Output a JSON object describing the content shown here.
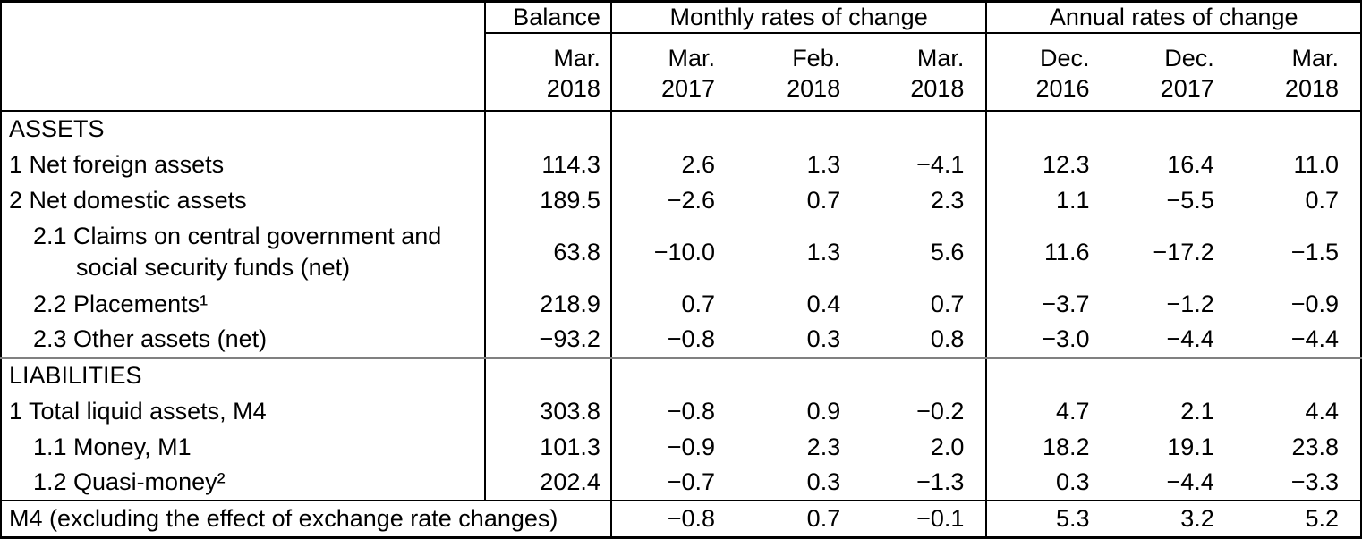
{
  "meta": {
    "accent_border_color": "#000000",
    "section_separator_color": "#808080",
    "background_color": "#ffffff"
  },
  "table": {
    "header": {
      "balance_label": "Balance",
      "monthly_label": "Monthly rates of change",
      "annual_label": "Annual rates of change",
      "balance_period": {
        "month": "Mar.",
        "year": "2018"
      },
      "monthly_periods": [
        {
          "month": "Mar.",
          "year": "2017"
        },
        {
          "month": "Feb.",
          "year": "2018"
        },
        {
          "month": "Mar.",
          "year": "2018"
        }
      ],
      "annual_periods": [
        {
          "month": "Dec.",
          "year": "2016"
        },
        {
          "month": "Dec.",
          "year": "2017"
        },
        {
          "month": "Mar.",
          "year": "2018"
        }
      ]
    },
    "rows": [
      {
        "type": "section",
        "label": "ASSETS"
      },
      {
        "type": "data",
        "indent": 0,
        "label": "1 Net foreign assets",
        "balance": "114.3",
        "monthly": [
          "2.6",
          "1.3",
          "−4.1"
        ],
        "annual": [
          "12.3",
          "16.4",
          "11.0"
        ]
      },
      {
        "type": "data",
        "indent": 0,
        "label": "2 Net domestic assets",
        "balance": "189.5",
        "monthly": [
          "−2.6",
          "0.7",
          "2.3"
        ],
        "annual": [
          "1.1",
          "−5.5",
          "0.7"
        ]
      },
      {
        "type": "data",
        "indent": 1,
        "label_lines": [
          "2.1 Claims on central government and",
          "social security funds (net)"
        ],
        "balance": "63.8",
        "monthly": [
          "−10.0",
          "1.3",
          "5.6"
        ],
        "annual": [
          "11.6",
          "−17.2",
          "−1.5"
        ]
      },
      {
        "type": "data",
        "indent": 1,
        "label": "2.2 Placements¹",
        "balance": "218.9",
        "monthly": [
          "0.7",
          "0.4",
          "0.7"
        ],
        "annual": [
          "−3.7",
          "−1.2",
          "−0.9"
        ]
      },
      {
        "type": "data",
        "indent": 1,
        "label": "2.3 Other assets (net)",
        "balance": "−93.2",
        "monthly": [
          "−0.8",
          "0.3",
          "0.8"
        ],
        "annual": [
          "−3.0",
          "−4.4",
          "−4.4"
        ]
      },
      {
        "type": "section",
        "label": "LIABILITIES",
        "separator": true
      },
      {
        "type": "data",
        "indent": 0,
        "label": "1 Total liquid assets, M4",
        "balance": "303.8",
        "monthly": [
          "−0.8",
          "0.9",
          "−0.2"
        ],
        "annual": [
          "4.7",
          "2.1",
          "4.4"
        ]
      },
      {
        "type": "data",
        "indent": 1,
        "label": "1.1 Money, M1",
        "balance": "101.3",
        "monthly": [
          "−0.9",
          "2.3",
          "2.0"
        ],
        "annual": [
          "18.2",
          "19.1",
          "23.8"
        ]
      },
      {
        "type": "data",
        "indent": 1,
        "label": "1.2 Quasi-money²",
        "balance": "202.4",
        "monthly": [
          "−0.7",
          "0.3",
          "−1.3"
        ],
        "annual": [
          "0.3",
          "−4.4",
          "−3.3"
        ]
      },
      {
        "type": "footer",
        "label": "M4 (excluding the effect of exchange rate changes)",
        "monthly": [
          "−0.8",
          "0.7",
          "−0.1"
        ],
        "annual": [
          "5.3",
          "3.2",
          "5.2"
        ]
      }
    ]
  }
}
